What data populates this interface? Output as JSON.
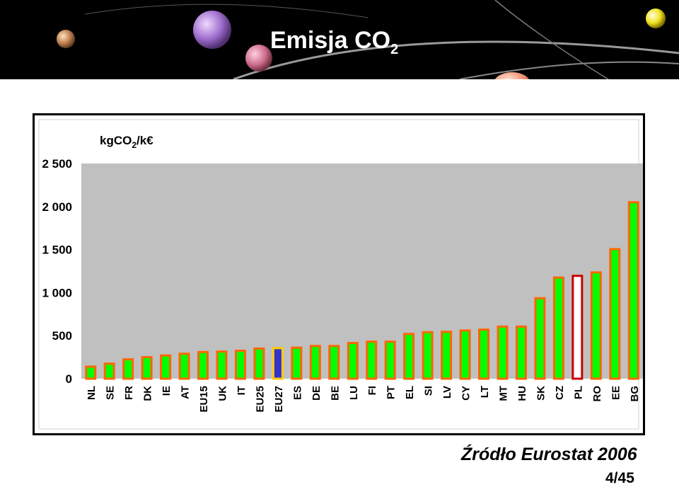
{
  "slide": {
    "title_main": "Emisja CO",
    "title_sub": "2",
    "source": "Źródło Eurostat 2006",
    "page": "4/45"
  },
  "colors": {
    "banner": "#000000",
    "plot_area": "#c0c0c0",
    "bar_fill": "#00ff00",
    "bar_border": "#ff6600",
    "highlight_eu27_fill": "#3333cc",
    "highlight_eu27_border": "#ffcc00",
    "highlight_pl_fill": "#ffffff",
    "highlight_pl_border": "#cc0000"
  },
  "chart_data": {
    "type": "bar",
    "title": "",
    "unit_label_main": "kgCO",
    "unit_label_sub": "2",
    "unit_label_tail": "/k€",
    "categories": [
      "NL",
      "SE",
      "FR",
      "DK",
      "IE",
      "AT",
      "EU15",
      "UK",
      "IT",
      "EU25",
      "EU27",
      "ES",
      "DE",
      "BE",
      "LU",
      "FI",
      "PT",
      "EL",
      "SI",
      "LV",
      "CY",
      "LT",
      "MT",
      "HU",
      "SK",
      "CZ",
      "PL",
      "RO",
      "EE",
      "BG"
    ],
    "values": [
      140,
      175,
      225,
      250,
      270,
      290,
      310,
      315,
      325,
      350,
      355,
      360,
      380,
      380,
      415,
      430,
      430,
      520,
      540,
      545,
      560,
      570,
      605,
      605,
      935,
      1175,
      1195,
      1235,
      1505,
      2050
    ],
    "highlight": {
      "EU27": "eu27",
      "PL": "pl"
    },
    "ylim": [
      0,
      2500
    ],
    "yticks": [
      0,
      500,
      1000,
      1500,
      2000,
      2500
    ],
    "ytick_labels": [
      "0",
      "500",
      "1 000",
      "1 500",
      "2 000",
      "2 500"
    ],
    "grid": false,
    "legend": "none"
  }
}
